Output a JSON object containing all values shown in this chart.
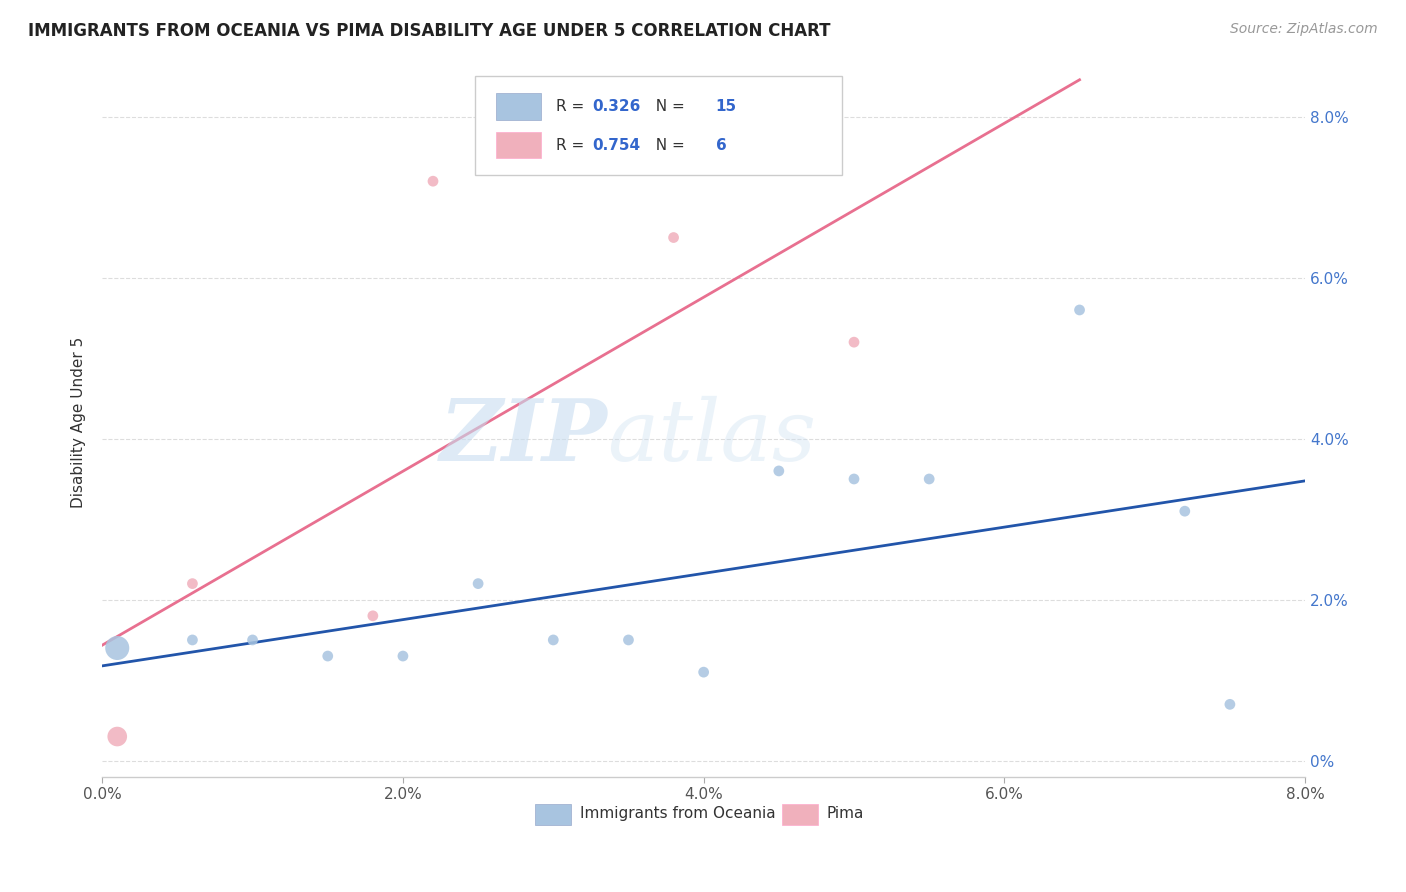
{
  "title": "IMMIGRANTS FROM OCEANIA VS PIMA DISABILITY AGE UNDER 5 CORRELATION CHART",
  "source": "Source: ZipAtlas.com",
  "ylabel": "Disability Age Under 5",
  "xlim": [
    0.0,
    0.08
  ],
  "ylim": [
    -0.002,
    0.086
  ],
  "xtick_vals": [
    0.0,
    0.02,
    0.04,
    0.06,
    0.08
  ],
  "ytick_vals": [
    0.0,
    0.02,
    0.04,
    0.06,
    0.08
  ],
  "blue_R": 0.326,
  "blue_N": 15,
  "pink_R": 0.754,
  "pink_N": 6,
  "blue_color": "#a8c4e0",
  "pink_color": "#f0b0bc",
  "blue_line_color": "#2255aa",
  "pink_line_color": "#e87090",
  "watermark_zip": "ZIP",
  "watermark_atlas": "atlas",
  "blue_scatter_x": [
    0.001,
    0.006,
    0.01,
    0.015,
    0.02,
    0.025,
    0.03,
    0.035,
    0.04,
    0.045,
    0.05,
    0.055,
    0.065,
    0.072,
    0.075
  ],
  "blue_scatter_y": [
    0.014,
    0.015,
    0.015,
    0.013,
    0.013,
    0.022,
    0.015,
    0.015,
    0.011,
    0.036,
    0.035,
    0.035,
    0.056,
    0.031,
    0.007
  ],
  "blue_scatter_size": [
    300,
    60,
    60,
    60,
    60,
    60,
    60,
    60,
    60,
    60,
    60,
    60,
    60,
    60,
    60
  ],
  "pink_scatter_x": [
    0.001,
    0.006,
    0.018,
    0.022,
    0.038,
    0.05
  ],
  "pink_scatter_y": [
    0.003,
    0.022,
    0.018,
    0.072,
    0.065,
    0.052
  ],
  "pink_scatter_size": [
    200,
    60,
    60,
    60,
    60,
    60
  ],
  "legend_labels": [
    "Immigrants from Oceania",
    "Pima"
  ],
  "background_color": "#ffffff",
  "grid_color": "#dddddd"
}
